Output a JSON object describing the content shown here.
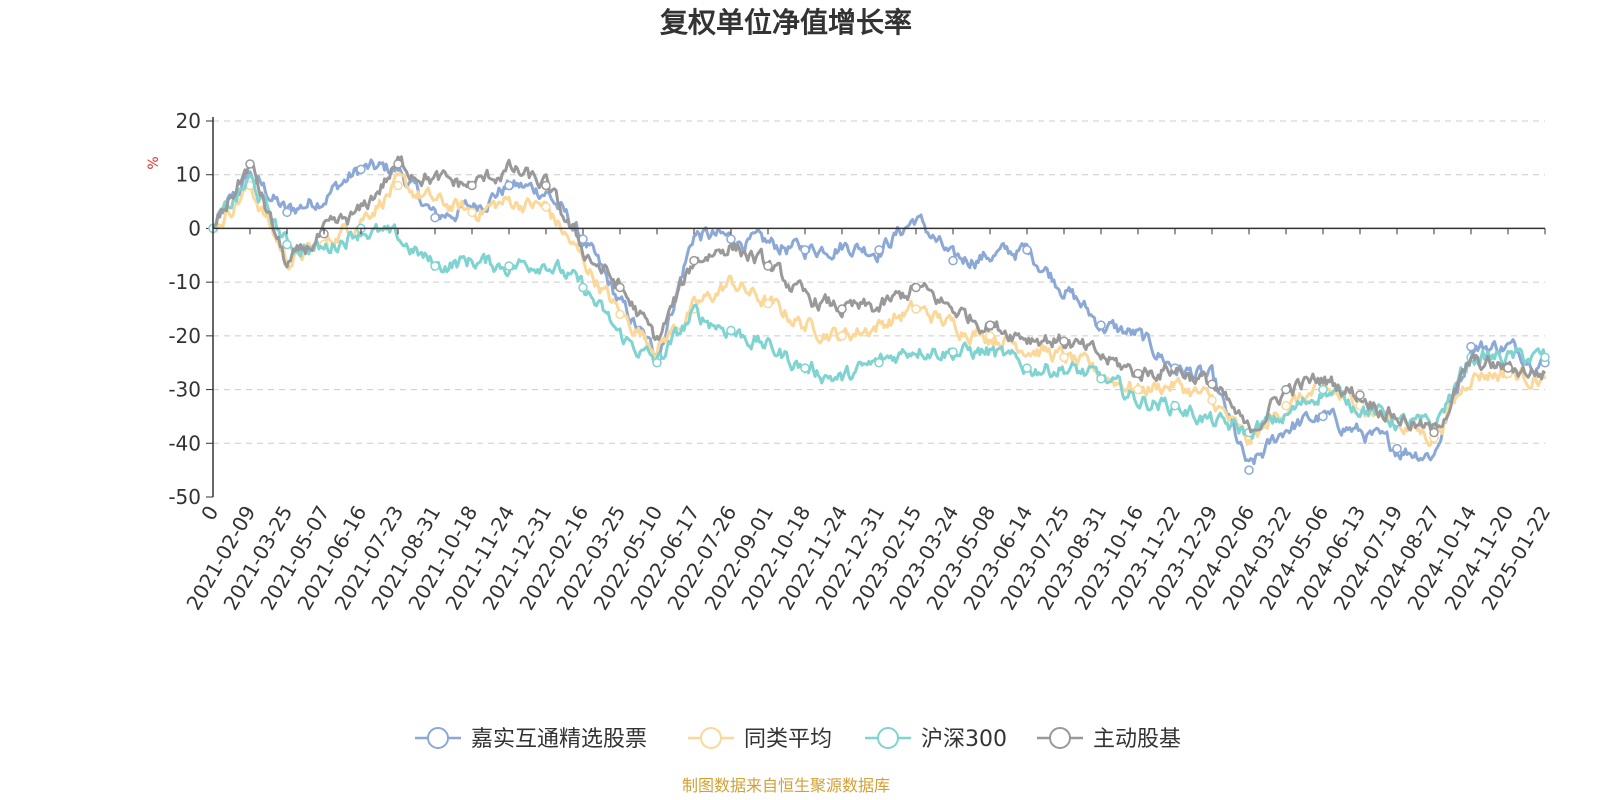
{
  "chart_data": {
    "type": "line",
    "title": "复权单位净值增长率",
    "ylabel": "%",
    "ylim": [
      -50,
      20
    ],
    "yticks": [
      "20",
      "10",
      "0",
      "-10",
      "-20",
      "-30",
      "-40",
      "-50"
    ],
    "x_labels": [
      "0",
      "2021-02-09",
      "2021-03-25",
      "2021-05-07",
      "2021-06-16",
      "2021-07-23",
      "2021-08-31",
      "2021-10-18",
      "2021-11-24",
      "2021-12-31",
      "2022-02-16",
      "2022-03-25",
      "2022-05-10",
      "2022-06-17",
      "2022-07-26",
      "2022-09-01",
      "2022-10-18",
      "2022-11-24",
      "2022-12-31",
      "2023-02-15",
      "2023-03-24",
      "2023-05-08",
      "2023-06-14",
      "2023-07-25",
      "2023-08-31",
      "2023-10-16",
      "2023-11-22",
      "2023-12-29",
      "2024-02-06",
      "2024-03-22",
      "2024-05-06",
      "2024-06-13",
      "2024-07-19",
      "2024-08-27",
      "2024-10-14",
      "2024-11-20",
      "2025-01-22"
    ],
    "series": [
      {
        "name": "嘉实互通精选股票",
        "color": "#8ba8d6",
        "values": [
          0,
          10,
          3,
          6,
          11,
          11,
          2,
          4,
          8,
          7,
          -2,
          -14,
          -24,
          -1,
          -2,
          -3,
          -4,
          -3,
          -4,
          2,
          -6,
          -5,
          -4,
          -11,
          -18,
          -20,
          -26,
          -28,
          -45,
          -37,
          -35,
          -38,
          -41,
          -42,
          -22,
          -22,
          -25
        ]
      },
      {
        "name": "同类平均",
        "color": "#fbd89a",
        "values": [
          0,
          8,
          -6,
          -3,
          2,
          8,
          5,
          3,
          5,
          4,
          -6,
          -16,
          -22,
          -15,
          -10,
          -14,
          -18,
          -20,
          -18,
          -15,
          -18,
          -20,
          -22,
          -24,
          -27,
          -30,
          -29,
          -32,
          -40,
          -33,
          -30,
          -33,
          -36,
          -39,
          -27,
          -27,
          -28
        ]
      },
      {
        "name": "沪深300",
        "color": "#7fd3d0",
        "values": [
          0,
          9,
          -3,
          -4,
          0,
          -2,
          -7,
          -6,
          -7,
          -6,
          -11,
          -20,
          -25,
          -16,
          -19,
          -22,
          -26,
          -28,
          -25,
          -22,
          -23,
          -23,
          -26,
          -26,
          -28,
          -32,
          -33,
          -36,
          -38,
          -35,
          -30,
          -33,
          -36,
          -37,
          -24,
          -24,
          -24
        ]
      },
      {
        "name": "主动股基",
        "color": "#999999",
        "values": [
          0,
          12,
          -7,
          -1,
          3,
          12,
          9,
          8,
          11,
          8,
          -4,
          -11,
          -21,
          -6,
          -3,
          -7,
          -13,
          -15,
          -15,
          -11,
          -15,
          -18,
          -20,
          -21,
          -24,
          -27,
          -26,
          -29,
          -38,
          -30,
          -28,
          -31,
          -35,
          -38,
          -25,
          -26,
          -27
        ]
      }
    ],
    "source_text": "制图数据来自恒生聚源数据库"
  }
}
